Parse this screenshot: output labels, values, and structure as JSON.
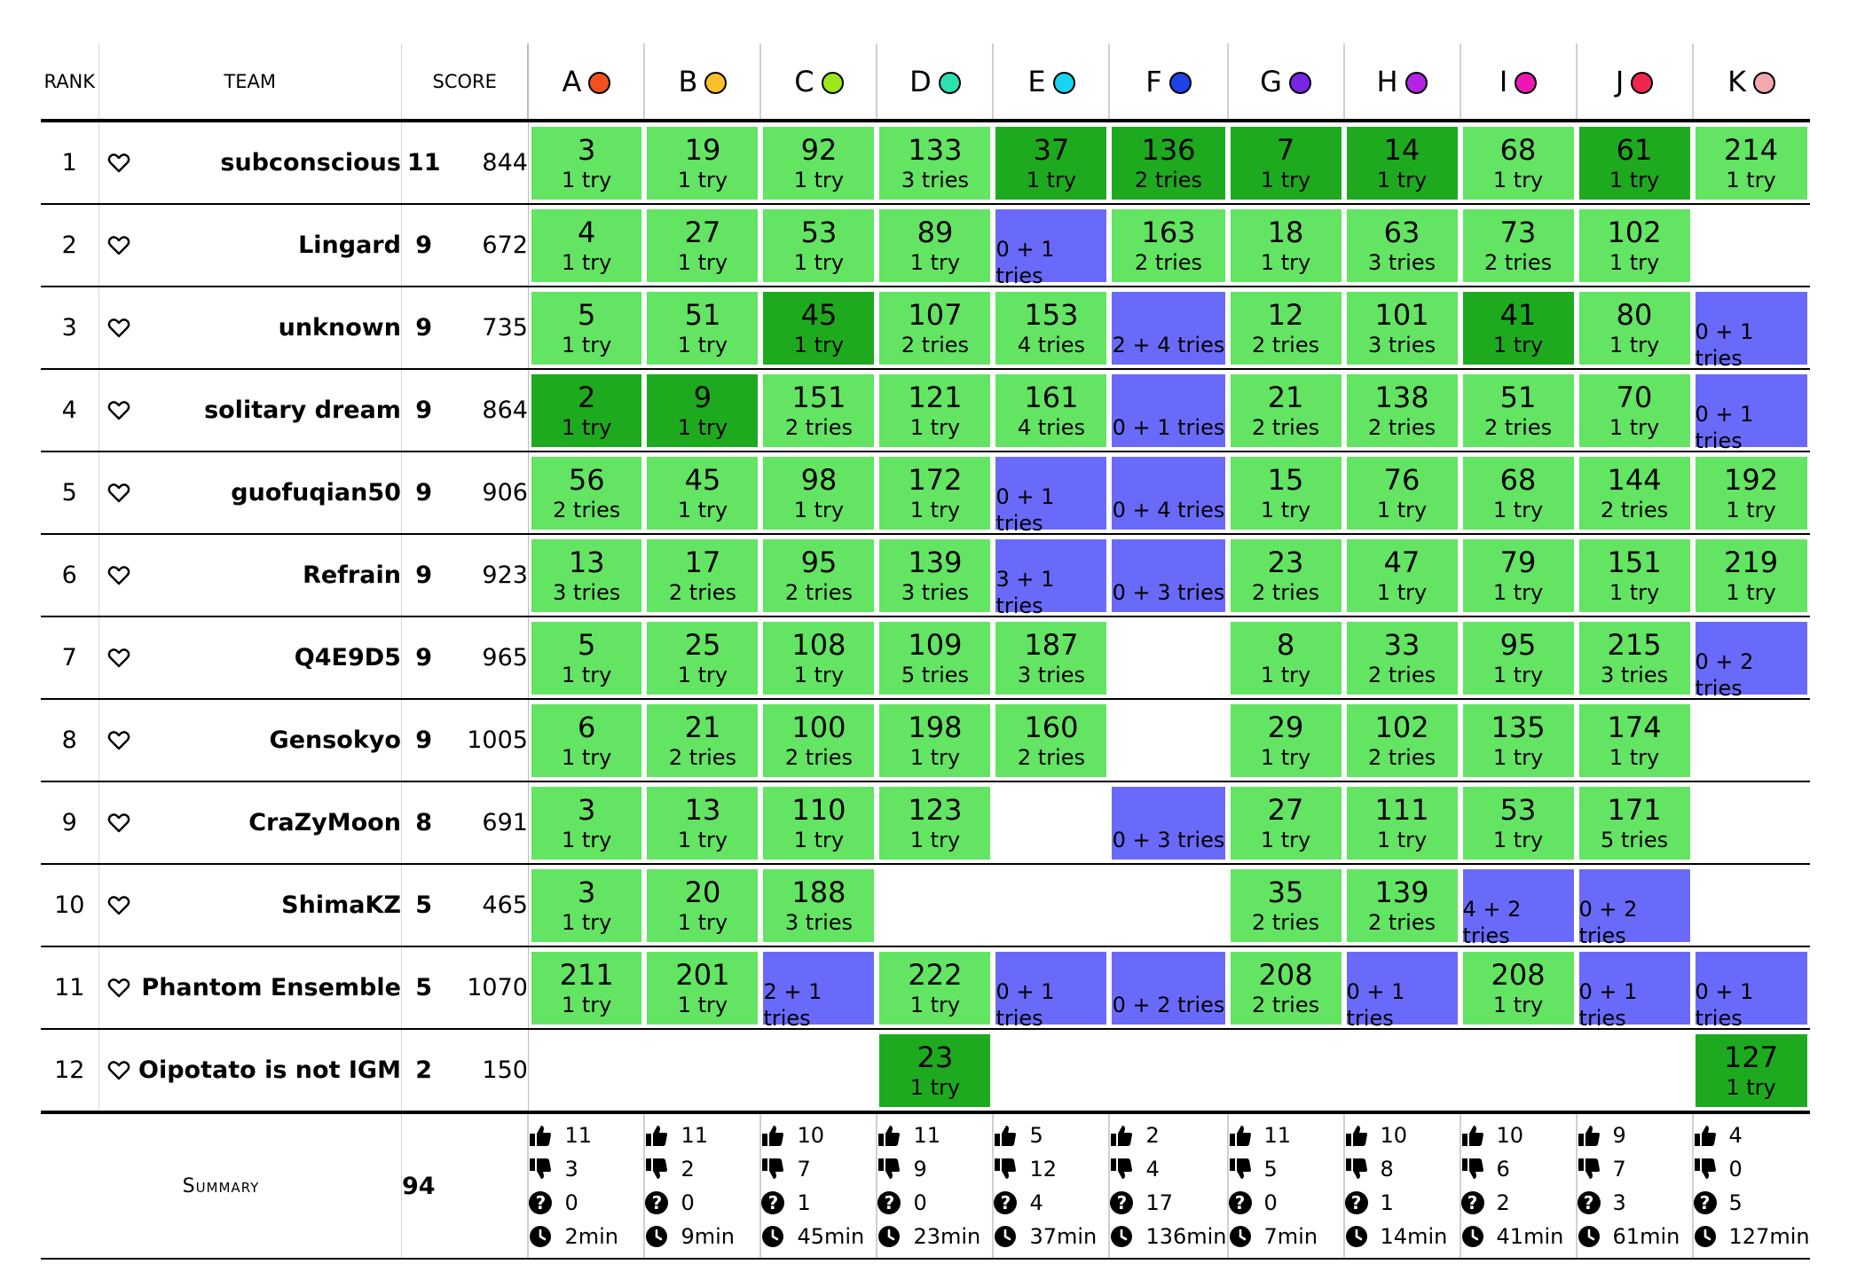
{
  "header": {
    "rank": "RANK",
    "team": "TEAM",
    "score": "SCORE",
    "problems": [
      {
        "letter": "A",
        "color": "#f4511e"
      },
      {
        "letter": "B",
        "color": "#fbc02d"
      },
      {
        "letter": "C",
        "color": "#9be81b"
      },
      {
        "letter": "D",
        "color": "#2de0b0"
      },
      {
        "letter": "E",
        "color": "#18d4f2"
      },
      {
        "letter": "F",
        "color": "#1d44e6"
      },
      {
        "letter": "G",
        "color": "#7a24e6"
      },
      {
        "letter": "H",
        "color": "#b324e6"
      },
      {
        "letter": "I",
        "color": "#f016b2"
      },
      {
        "letter": "J",
        "color": "#f0264e"
      },
      {
        "letter": "K",
        "color": "#f3a7ae"
      }
    ]
  },
  "colors": {
    "accepted": "#63e463",
    "first_solve": "#1eaa1e",
    "rejected": "#6a6afa"
  },
  "teams": [
    {
      "rank": "1",
      "name": "subconscious",
      "solved": "11",
      "penalty": "844",
      "cells": [
        {
          "s": "ac",
          "time": "3",
          "note": "1 try"
        },
        {
          "s": "ac",
          "time": "19",
          "note": "1 try"
        },
        {
          "s": "ac",
          "time": "92",
          "note": "1 try"
        },
        {
          "s": "ac",
          "time": "133",
          "note": "3 tries"
        },
        {
          "s": "first",
          "time": "37",
          "note": "1 try"
        },
        {
          "s": "first",
          "time": "136",
          "note": "2 tries"
        },
        {
          "s": "first",
          "time": "7",
          "note": "1 try"
        },
        {
          "s": "first",
          "time": "14",
          "note": "1 try"
        },
        {
          "s": "ac",
          "time": "68",
          "note": "1 try"
        },
        {
          "s": "first",
          "time": "61",
          "note": "1 try"
        },
        {
          "s": "ac",
          "time": "214",
          "note": "1 try"
        }
      ]
    },
    {
      "rank": "2",
      "name": "Lingard",
      "solved": "9",
      "penalty": "672",
      "cells": [
        {
          "s": "ac",
          "time": "4",
          "note": "1 try"
        },
        {
          "s": "ac",
          "time": "27",
          "note": "1 try"
        },
        {
          "s": "ac",
          "time": "53",
          "note": "1 try"
        },
        {
          "s": "ac",
          "time": "89",
          "note": "1 try"
        },
        {
          "s": "wa",
          "time": "",
          "note": "0 + 1 tries"
        },
        {
          "s": "ac",
          "time": "163",
          "note": "2 tries"
        },
        {
          "s": "ac",
          "time": "18",
          "note": "1 try"
        },
        {
          "s": "ac",
          "time": "63",
          "note": "3 tries"
        },
        {
          "s": "ac",
          "time": "73",
          "note": "2 tries"
        },
        {
          "s": "ac",
          "time": "102",
          "note": "1 try"
        },
        {
          "s": "none",
          "time": "",
          "note": ""
        }
      ]
    },
    {
      "rank": "3",
      "name": "unknown",
      "solved": "9",
      "penalty": "735",
      "cells": [
        {
          "s": "ac",
          "time": "5",
          "note": "1 try"
        },
        {
          "s": "ac",
          "time": "51",
          "note": "1 try"
        },
        {
          "s": "first",
          "time": "45",
          "note": "1 try"
        },
        {
          "s": "ac",
          "time": "107",
          "note": "2 tries"
        },
        {
          "s": "ac",
          "time": "153",
          "note": "4 tries"
        },
        {
          "s": "wa",
          "time": "",
          "note": "2 + 4 tries"
        },
        {
          "s": "ac",
          "time": "12",
          "note": "2 tries"
        },
        {
          "s": "ac",
          "time": "101",
          "note": "3 tries"
        },
        {
          "s": "first",
          "time": "41",
          "note": "1 try"
        },
        {
          "s": "ac",
          "time": "80",
          "note": "1 try"
        },
        {
          "s": "wa",
          "time": "",
          "note": "0 + 1 tries"
        }
      ]
    },
    {
      "rank": "4",
      "name": "solitary dream",
      "solved": "9",
      "penalty": "864",
      "cells": [
        {
          "s": "first",
          "time": "2",
          "note": "1 try"
        },
        {
          "s": "first",
          "time": "9",
          "note": "1 try"
        },
        {
          "s": "ac",
          "time": "151",
          "note": "2 tries"
        },
        {
          "s": "ac",
          "time": "121",
          "note": "1 try"
        },
        {
          "s": "ac",
          "time": "161",
          "note": "4 tries"
        },
        {
          "s": "wa",
          "time": "",
          "note": "0 + 1 tries"
        },
        {
          "s": "ac",
          "time": "21",
          "note": "2 tries"
        },
        {
          "s": "ac",
          "time": "138",
          "note": "2 tries"
        },
        {
          "s": "ac",
          "time": "51",
          "note": "2 tries"
        },
        {
          "s": "ac",
          "time": "70",
          "note": "1 try"
        },
        {
          "s": "wa",
          "time": "",
          "note": "0 + 1 tries"
        }
      ]
    },
    {
      "rank": "5",
      "name": "guofuqian50",
      "solved": "9",
      "penalty": "906",
      "cells": [
        {
          "s": "ac",
          "time": "56",
          "note": "2 tries"
        },
        {
          "s": "ac",
          "time": "45",
          "note": "1 try"
        },
        {
          "s": "ac",
          "time": "98",
          "note": "1 try"
        },
        {
          "s": "ac",
          "time": "172",
          "note": "1 try"
        },
        {
          "s": "wa",
          "time": "",
          "note": "0 + 1 tries"
        },
        {
          "s": "wa",
          "time": "",
          "note": "0 + 4 tries"
        },
        {
          "s": "ac",
          "time": "15",
          "note": "1 try"
        },
        {
          "s": "ac",
          "time": "76",
          "note": "1 try"
        },
        {
          "s": "ac",
          "time": "68",
          "note": "1 try"
        },
        {
          "s": "ac",
          "time": "144",
          "note": "2 tries"
        },
        {
          "s": "ac",
          "time": "192",
          "note": "1 try"
        }
      ]
    },
    {
      "rank": "6",
      "name": "Refrain",
      "solved": "9",
      "penalty": "923",
      "cells": [
        {
          "s": "ac",
          "time": "13",
          "note": "3 tries"
        },
        {
          "s": "ac",
          "time": "17",
          "note": "2 tries"
        },
        {
          "s": "ac",
          "time": "95",
          "note": "2 tries"
        },
        {
          "s": "ac",
          "time": "139",
          "note": "3 tries"
        },
        {
          "s": "wa",
          "time": "",
          "note": "3 + 1 tries"
        },
        {
          "s": "wa",
          "time": "",
          "note": "0 + 3 tries"
        },
        {
          "s": "ac",
          "time": "23",
          "note": "2 tries"
        },
        {
          "s": "ac",
          "time": "47",
          "note": "1 try"
        },
        {
          "s": "ac",
          "time": "79",
          "note": "1 try"
        },
        {
          "s": "ac",
          "time": "151",
          "note": "1 try"
        },
        {
          "s": "ac",
          "time": "219",
          "note": "1 try"
        }
      ]
    },
    {
      "rank": "7",
      "name": "Q4E9D5",
      "solved": "9",
      "penalty": "965",
      "cells": [
        {
          "s": "ac",
          "time": "5",
          "note": "1 try"
        },
        {
          "s": "ac",
          "time": "25",
          "note": "1 try"
        },
        {
          "s": "ac",
          "time": "108",
          "note": "1 try"
        },
        {
          "s": "ac",
          "time": "109",
          "note": "5 tries"
        },
        {
          "s": "ac",
          "time": "187",
          "note": "3 tries"
        },
        {
          "s": "none",
          "time": "",
          "note": ""
        },
        {
          "s": "ac",
          "time": "8",
          "note": "1 try"
        },
        {
          "s": "ac",
          "time": "33",
          "note": "2 tries"
        },
        {
          "s": "ac",
          "time": "95",
          "note": "1 try"
        },
        {
          "s": "ac",
          "time": "215",
          "note": "3 tries"
        },
        {
          "s": "wa",
          "time": "",
          "note": "0 + 2 tries"
        }
      ]
    },
    {
      "rank": "8",
      "name": "Gensokyo",
      "solved": "9",
      "penalty": "1005",
      "cells": [
        {
          "s": "ac",
          "time": "6",
          "note": "1 try"
        },
        {
          "s": "ac",
          "time": "21",
          "note": "2 tries"
        },
        {
          "s": "ac",
          "time": "100",
          "note": "2 tries"
        },
        {
          "s": "ac",
          "time": "198",
          "note": "1 try"
        },
        {
          "s": "ac",
          "time": "160",
          "note": "2 tries"
        },
        {
          "s": "none",
          "time": "",
          "note": ""
        },
        {
          "s": "ac",
          "time": "29",
          "note": "1 try"
        },
        {
          "s": "ac",
          "time": "102",
          "note": "2 tries"
        },
        {
          "s": "ac",
          "time": "135",
          "note": "1 try"
        },
        {
          "s": "ac",
          "time": "174",
          "note": "1 try"
        },
        {
          "s": "none",
          "time": "",
          "note": ""
        }
      ]
    },
    {
      "rank": "9",
      "name": "CraZyMoon",
      "solved": "8",
      "penalty": "691",
      "cells": [
        {
          "s": "ac",
          "time": "3",
          "note": "1 try"
        },
        {
          "s": "ac",
          "time": "13",
          "note": "1 try"
        },
        {
          "s": "ac",
          "time": "110",
          "note": "1 try"
        },
        {
          "s": "ac",
          "time": "123",
          "note": "1 try"
        },
        {
          "s": "none",
          "time": "",
          "note": ""
        },
        {
          "s": "wa",
          "time": "",
          "note": "0 + 3 tries"
        },
        {
          "s": "ac",
          "time": "27",
          "note": "1 try"
        },
        {
          "s": "ac",
          "time": "111",
          "note": "1 try"
        },
        {
          "s": "ac",
          "time": "53",
          "note": "1 try"
        },
        {
          "s": "ac",
          "time": "171",
          "note": "5 tries"
        },
        {
          "s": "none",
          "time": "",
          "note": ""
        }
      ]
    },
    {
      "rank": "10",
      "name": "ShimaKZ",
      "solved": "5",
      "penalty": "465",
      "cells": [
        {
          "s": "ac",
          "time": "3",
          "note": "1 try"
        },
        {
          "s": "ac",
          "time": "20",
          "note": "1 try"
        },
        {
          "s": "ac",
          "time": "188",
          "note": "3 tries"
        },
        {
          "s": "none",
          "time": "",
          "note": ""
        },
        {
          "s": "none",
          "time": "",
          "note": ""
        },
        {
          "s": "none",
          "time": "",
          "note": ""
        },
        {
          "s": "ac",
          "time": "35",
          "note": "2 tries"
        },
        {
          "s": "ac",
          "time": "139",
          "note": "2 tries"
        },
        {
          "s": "wa",
          "time": "",
          "note": "4 + 2 tries"
        },
        {
          "s": "wa",
          "time": "",
          "note": "0 + 2 tries"
        },
        {
          "s": "none",
          "time": "",
          "note": ""
        }
      ]
    },
    {
      "rank": "11",
      "name": "Phantom Ensemble",
      "solved": "5",
      "penalty": "1070",
      "cells": [
        {
          "s": "ac",
          "time": "211",
          "note": "1 try"
        },
        {
          "s": "ac",
          "time": "201",
          "note": "1 try"
        },
        {
          "s": "wa",
          "time": "",
          "note": "2 + 1 tries"
        },
        {
          "s": "ac",
          "time": "222",
          "note": "1 try"
        },
        {
          "s": "wa",
          "time": "",
          "note": "0 + 1 tries"
        },
        {
          "s": "wa",
          "time": "",
          "note": "0 + 2 tries"
        },
        {
          "s": "ac",
          "time": "208",
          "note": "2 tries"
        },
        {
          "s": "wa",
          "time": "",
          "note": "0 + 1 tries"
        },
        {
          "s": "ac",
          "time": "208",
          "note": "1 try"
        },
        {
          "s": "wa",
          "time": "",
          "note": "0 + 1 tries"
        },
        {
          "s": "wa",
          "time": "",
          "note": "0 + 1 tries"
        }
      ]
    },
    {
      "rank": "12",
      "name": "Oipotato is not IGM",
      "solved": "2",
      "penalty": "150",
      "cells": [
        {
          "s": "none",
          "time": "",
          "note": ""
        },
        {
          "s": "none",
          "time": "",
          "note": ""
        },
        {
          "s": "none",
          "time": "",
          "note": ""
        },
        {
          "s": "first",
          "time": "23",
          "note": "1 try"
        },
        {
          "s": "none",
          "time": "",
          "note": ""
        },
        {
          "s": "none",
          "time": "",
          "note": ""
        },
        {
          "s": "none",
          "time": "",
          "note": ""
        },
        {
          "s": "none",
          "time": "",
          "note": ""
        },
        {
          "s": "none",
          "time": "",
          "note": ""
        },
        {
          "s": "none",
          "time": "",
          "note": ""
        },
        {
          "s": "first",
          "time": "127",
          "note": "1 try"
        }
      ]
    }
  ],
  "summary": {
    "label": "Summary",
    "total": "94",
    "stats": [
      {
        "up": "11",
        "down": "3",
        "unknown": "0",
        "first": "2min"
      },
      {
        "up": "11",
        "down": "2",
        "unknown": "0",
        "first": "9min"
      },
      {
        "up": "10",
        "down": "7",
        "unknown": "1",
        "first": "45min"
      },
      {
        "up": "11",
        "down": "9",
        "unknown": "0",
        "first": "23min"
      },
      {
        "up": "5",
        "down": "12",
        "unknown": "4",
        "first": "37min"
      },
      {
        "up": "2",
        "down": "4",
        "unknown": "17",
        "first": "136min"
      },
      {
        "up": "11",
        "down": "5",
        "unknown": "0",
        "first": "7min"
      },
      {
        "up": "10",
        "down": "8",
        "unknown": "1",
        "first": "14min"
      },
      {
        "up": "10",
        "down": "6",
        "unknown": "2",
        "first": "41min"
      },
      {
        "up": "9",
        "down": "7",
        "unknown": "3",
        "first": "61min"
      },
      {
        "up": "4",
        "down": "0",
        "unknown": "5",
        "first": "127min"
      }
    ],
    "icons": {
      "up": "thumbs-up-icon",
      "down": "thumbs-down-icon",
      "unknown": "question-icon",
      "first": "clock-icon"
    }
  }
}
